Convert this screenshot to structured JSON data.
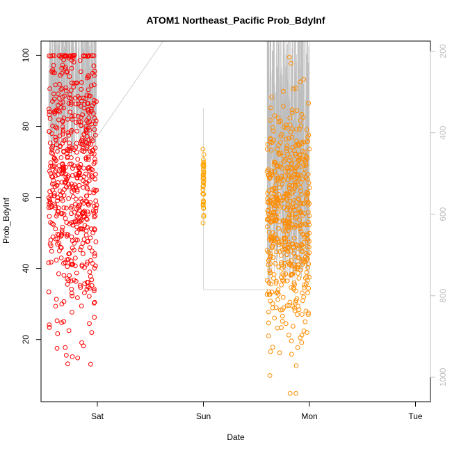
{
  "chart_data": {
    "type": "scatter",
    "title": "ATOM1 Northeast_Pacific Prob_BdyInf",
    "xlabel": "Date",
    "ylabel": "Prob_BdyInf",
    "x_ticks": [
      "Sat",
      "Sun",
      "Mon",
      "Tue"
    ],
    "y_ticks": [
      20,
      40,
      60,
      80,
      100
    ],
    "y2_ticks": [
      200,
      400,
      600,
      800,
      1000
    ],
    "xlim": [
      -0.53,
      1.15
    ],
    "ylim": [
      2.5,
      104.0
    ],
    "y2lim": [
      1060,
      175
    ],
    "legend": "none",
    "grid": false,
    "colors": {
      "series_1": "#ff0000",
      "series_2": "#ffa500",
      "series_3": "#ff8c00",
      "depth_line": "#bebebe"
    },
    "series": [
      {
        "color_key": "series_1",
        "x_range": [
          -0.46,
          -0.005
        ],
        "n_points": 600,
        "y_range": [
          13,
          100
        ],
        "y_mean": 66,
        "y_sd": 20
      },
      {
        "color_key": "series_2",
        "x_range": [
          0.995,
          1.005
        ],
        "n_points": 45,
        "y_range": [
          52,
          90
        ],
        "y_mean": 64,
        "y_sd": 5
      },
      {
        "color_key": "series_3",
        "x_range": [
          1.6,
          2.0
        ],
        "n_points": 550,
        "y_range": [
          4,
          100
        ],
        "y_mean": 52,
        "y_sd": 17
      }
    ],
    "depth_trace": {
      "secondary_axis": true,
      "values_range": [
        200,
        1000
      ]
    }
  }
}
